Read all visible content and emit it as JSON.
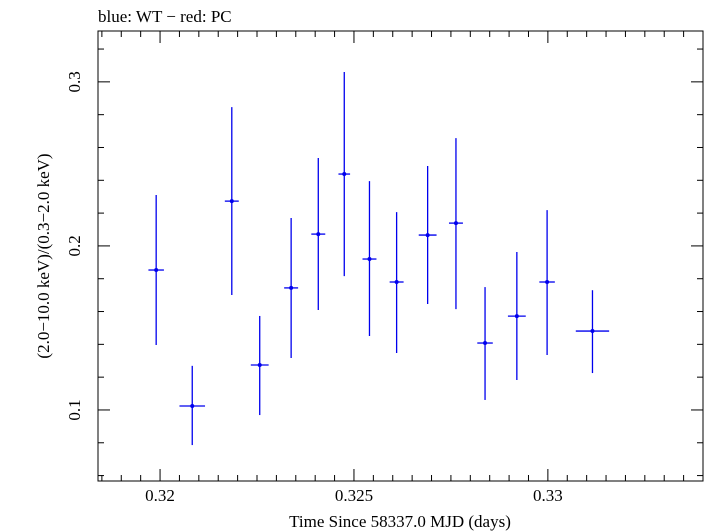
{
  "chart_data": {
    "type": "scatter",
    "title": "blue: WT − red: PC",
    "xlabel": "Time Since 58337.0 MJD (days)",
    "ylabel": "(2.0−10.0 keV)/(0.3−2.0 keV)",
    "xlim": [
      0.3184,
      0.334
    ],
    "ylim": [
      0.0567,
      0.331
    ],
    "x_ticks": [
      {
        "value": 0.32,
        "label": "0.32"
      },
      {
        "value": 0.325,
        "label": "0.325"
      },
      {
        "value": 0.33,
        "label": "0.33"
      }
    ],
    "y_ticks": [
      {
        "value": 0.1,
        "label": "0.1"
      },
      {
        "value": 0.2,
        "label": "0.2"
      },
      {
        "value": 0.3,
        "label": "0.3"
      }
    ],
    "color": "#0000ee",
    "series": [
      {
        "points": [
          {
            "x": 0.3199,
            "xerr": 0.0002,
            "y": 0.1853,
            "ylo": 0.1396,
            "yhi": 0.231
          },
          {
            "x": 0.32083,
            "xerr": 0.00033,
            "y": 0.1024,
            "ylo": 0.0786,
            "yhi": 0.1269
          },
          {
            "x": 0.32185,
            "xerr": 0.00018,
            "y": 0.2273,
            "ylo": 0.1701,
            "yhi": 0.2846
          },
          {
            "x": 0.32257,
            "xerr": 0.00023,
            "y": 0.1274,
            "ylo": 0.0969,
            "yhi": 0.1573
          },
          {
            "x": 0.32338,
            "xerr": 0.00018,
            "y": 0.1744,
            "ylo": 0.1317,
            "yhi": 0.217
          },
          {
            "x": 0.32408,
            "xerr": 0.00018,
            "y": 0.2072,
            "ylo": 0.1609,
            "yhi": 0.2536
          },
          {
            "x": 0.32475,
            "xerr": 0.00015,
            "y": 0.2438,
            "ylo": 0.1816,
            "yhi": 0.306
          },
          {
            "x": 0.3254,
            "xerr": 0.00018,
            "y": 0.192,
            "ylo": 0.1451,
            "yhi": 0.2395
          },
          {
            "x": 0.3261,
            "xerr": 0.00018,
            "y": 0.178,
            "ylo": 0.1347,
            "yhi": 0.2206
          },
          {
            "x": 0.3269,
            "xerr": 0.00023,
            "y": 0.2066,
            "ylo": 0.1646,
            "yhi": 0.2487
          },
          {
            "x": 0.32763,
            "xerr": 0.00018,
            "y": 0.2139,
            "ylo": 0.1615,
            "yhi": 0.2657
          },
          {
            "x": 0.32838,
            "xerr": 0.0002,
            "y": 0.1408,
            "ylo": 0.1061,
            "yhi": 0.1749
          },
          {
            "x": 0.3292,
            "xerr": 0.00023,
            "y": 0.1572,
            "ylo": 0.1183,
            "yhi": 0.1963
          },
          {
            "x": 0.32998,
            "xerr": 0.0002,
            "y": 0.178,
            "ylo": 0.1335,
            "yhi": 0.2218
          },
          {
            "x": 0.33115,
            "xerr": 0.00043,
            "y": 0.1481,
            "ylo": 0.1225,
            "yhi": 0.173
          }
        ]
      }
    ]
  }
}
